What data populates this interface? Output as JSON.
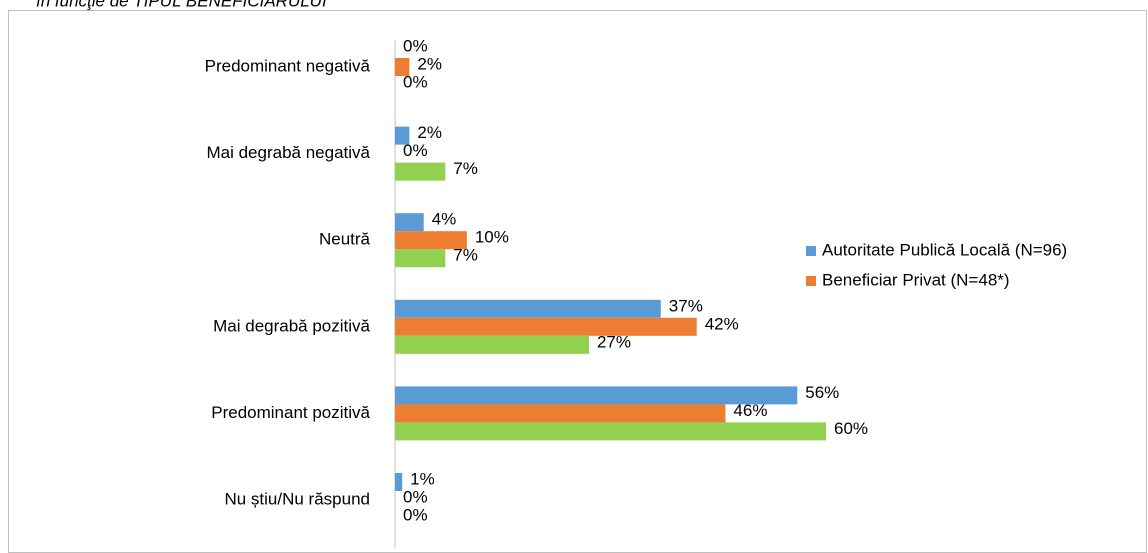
{
  "chart_data": {
    "type": "bar",
    "orientation": "horizontal",
    "title": "în funcţie de TIPUL BENEFICIARULUI",
    "categories": [
      "Predominant negativă",
      "Mai degrabă negativă",
      "Neutră",
      "Mai degrabă pozitivă",
      "Predominant pozitivă",
      "Nu știu/Nu răspund"
    ],
    "series": [
      {
        "name": "Autoritate Publică Locală (N=96)",
        "color": "#5b9bd5",
        "values": [
          0,
          2,
          4,
          37,
          56,
          1
        ],
        "value_labels": [
          "0%",
          "2%",
          "4%",
          "37%",
          "56%",
          "1%"
        ]
      },
      {
        "name": "Beneficiar Privat (N=48*)",
        "color": "#ed7d31",
        "values": [
          2,
          0,
          10,
          42,
          46,
          0
        ],
        "value_labels": [
          "2%",
          "0%",
          "10%",
          "42%",
          "46%",
          "0%"
        ]
      },
      {
        "color": "#92d050",
        "values": [
          0,
          7,
          7,
          27,
          60,
          0
        ],
        "value_labels": [
          "0%",
          "7%",
          "7%",
          "27%",
          "60%",
          "0%"
        ]
      }
    ],
    "legend": "right"
  }
}
